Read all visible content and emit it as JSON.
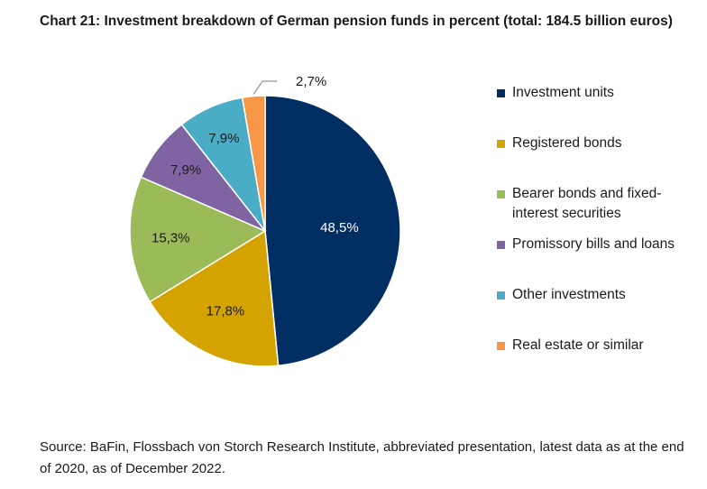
{
  "chart_data": {
    "type": "pie",
    "title": "Chart 21: Investment breakdown of German pension funds in percent (total: 184.5 billion euros)",
    "categories": [
      "Investment units",
      "Registered bonds",
      "Bearer bonds and fixed-interest securities",
      "Promissory bills and loans",
      "Other investments",
      "Real estate or similar"
    ],
    "values": [
      48.5,
      17.8,
      15.3,
      7.9,
      7.9,
      2.7
    ],
    "data_labels": [
      "48,5%",
      "17,8%",
      "15,3%",
      "7,9%",
      "7,9%",
      "2,7%"
    ],
    "colors": [
      "#002D62",
      "#D4A300",
      "#9BBB59",
      "#8064A2",
      "#4BACC6",
      "#F79646"
    ],
    "label_colors": [
      "#ffffff",
      "#1a1a1a",
      "#1a1a1a",
      "#1a1a1a",
      "#1a1a1a",
      "#1a1a1a"
    ],
    "legend_position": "right"
  },
  "source": "Source: BaFin, Flossbach von Storch Research Institute, abbreviated presentation, latest data as at the end of 2020, as of December 2022."
}
